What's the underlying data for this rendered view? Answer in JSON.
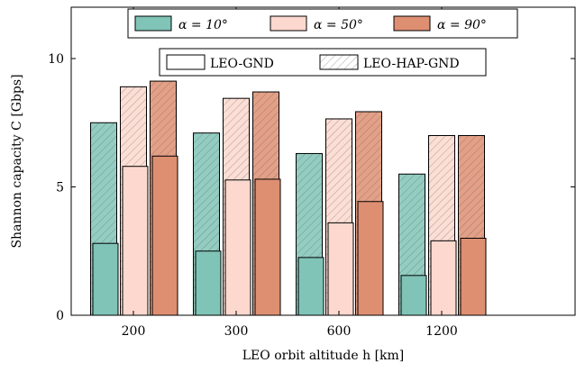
{
  "chart_data": {
    "type": "bar",
    "xlabel": "LEO orbit altitude h [km]",
    "ylabel": "Shannon capacity C [Gbps]",
    "categories": [
      "200",
      "300",
      "600",
      "1200"
    ],
    "ylim": [
      0,
      12
    ],
    "yticks": [
      0,
      5,
      10
    ],
    "grid": false,
    "legend_placement": "top",
    "angle_legend": [
      {
        "label": "α = 10°",
        "color": "#80c4b7"
      },
      {
        "label": "α = 50°",
        "color": "#fcd8ce"
      },
      {
        "label": "α = 90°",
        "color": "#de8f72"
      }
    ],
    "link_legend": [
      {
        "label": "LEO-GND",
        "pattern": "solid"
      },
      {
        "label": "LEO-HAP-GND",
        "pattern": "hatched"
      }
    ],
    "series": [
      {
        "angle": "α = 10°",
        "link": "LEO-GND",
        "values": [
          2.8,
          2.5,
          2.25,
          1.55
        ]
      },
      {
        "angle": "α = 10°",
        "link": "LEO-HAP-GND",
        "values": [
          7.5,
          7.1,
          6.3,
          5.5
        ]
      },
      {
        "angle": "α = 50°",
        "link": "LEO-GND",
        "values": [
          5.8,
          5.27,
          3.6,
          2.9
        ]
      },
      {
        "angle": "α = 50°",
        "link": "LEO-HAP-GND",
        "values": [
          8.9,
          8.45,
          7.65,
          7.0
        ]
      },
      {
        "angle": "α = 90°",
        "link": "LEO-GND",
        "values": [
          6.2,
          5.3,
          4.43,
          3.0
        ]
      },
      {
        "angle": "α = 90°",
        "link": "LEO-HAP-GND",
        "values": [
          9.12,
          8.7,
          7.93,
          7.0
        ]
      }
    ]
  }
}
